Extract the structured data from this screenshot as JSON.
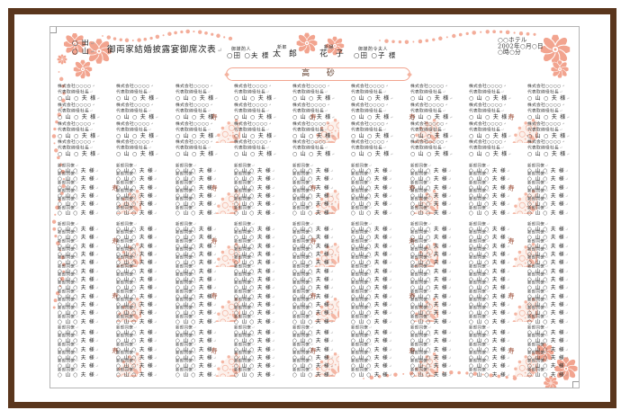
{
  "window": {
    "frame_color": "#5a361d"
  },
  "page": {
    "pmark": "↵",
    "title": "御両家結婚披露宴御席次表",
    "family_names": [
      "○ 田",
      "○ 山"
    ],
    "venue": {
      "hotel": "○○ホテル",
      "date": "2002年○月○日",
      "time": "○時○分"
    },
    "head_table": {
      "label": "高 砂",
      "matchmaker": {
        "label": "御媒酌人",
        "name": "○田 ○夫 様"
      },
      "groom": {
        "label": "新郎",
        "name": "太 郎"
      },
      "bride": {
        "label": "新婦",
        "name": "花 子"
      },
      "matchmaker_wife": {
        "label": "御媒酌令夫人",
        "name": "○田 ○子 様"
      }
    },
    "table_marker": {
      "kanji": "寿"
    },
    "guests": {
      "columns": 9,
      "company_entry": {
        "line1": "株式会社○○○○",
        "line2": "代表取締役社長",
        "name": "○ 山 ○ 夫 様"
      },
      "colleague_entry": {
        "label": "新郎同僚",
        "name": "○ 山 ○ 夫 様"
      },
      "bands": [
        {
          "type": "company",
          "rows": 4
        },
        {
          "type": "colleague",
          "rows": 6
        },
        {
          "type": "colleague",
          "rows": 6
        },
        {
          "type": "colleague",
          "rows": 6
        },
        {
          "type": "colleague",
          "rows": 6
        }
      ]
    },
    "colors": {
      "accent": "#f2a48f",
      "doily": "#f4b3a0",
      "marker_text": "#9c4a33",
      "text": "#3a3a3a"
    }
  }
}
